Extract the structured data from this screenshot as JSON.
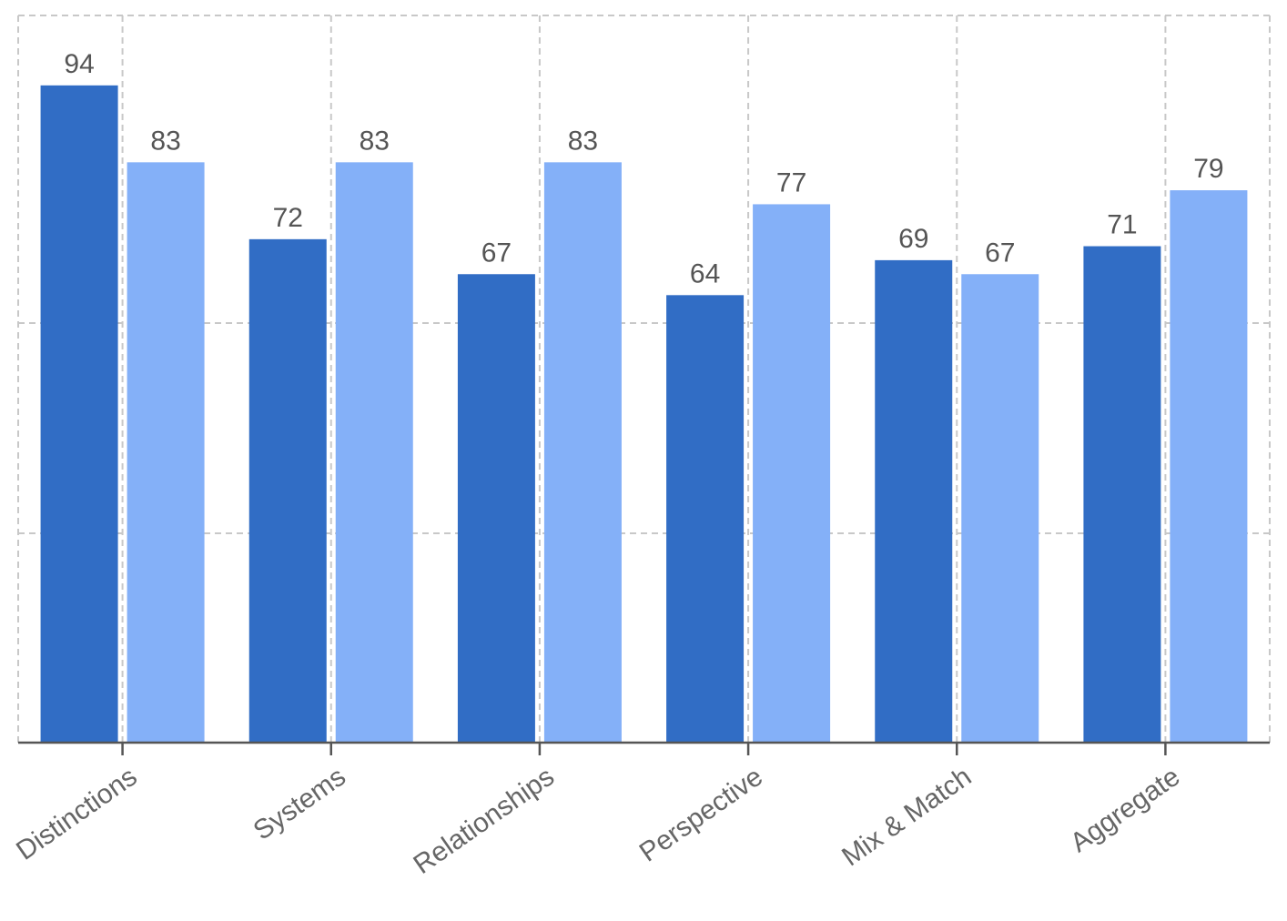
{
  "chart_data": {
    "type": "bar",
    "categories": [
      "Distinctions",
      "Systems",
      "Relationships",
      "Perspective",
      "Mix & Match",
      "Aggregate"
    ],
    "series": [
      {
        "values": [
          94,
          72,
          67,
          64,
          69,
          71
        ],
        "color": "#316dc5"
      },
      {
        "values": [
          83,
          83,
          83,
          77,
          67,
          79
        ],
        "color": "#84b0f8"
      }
    ],
    "ylim": [
      0,
      104
    ],
    "grid": true,
    "data_labels": true
  }
}
